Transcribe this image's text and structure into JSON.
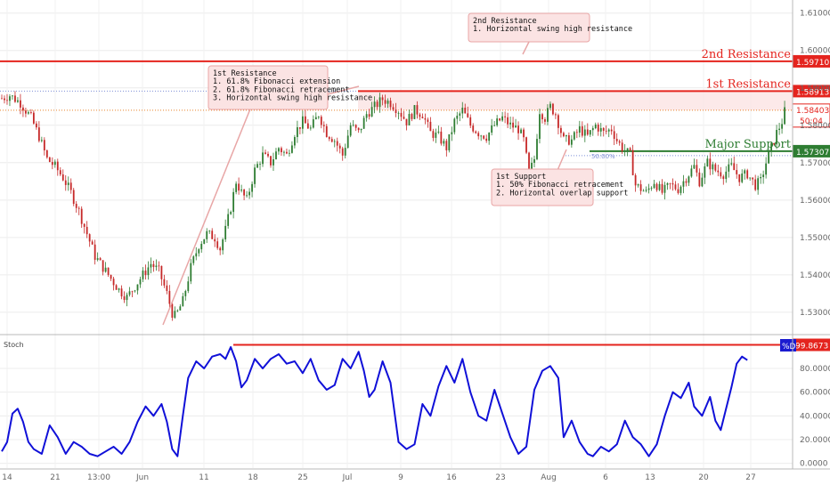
{
  "chart_data": {
    "type": "candlestick",
    "price_axis": {
      "ticks": [
        "1.53000",
        "1.54000",
        "1.55000",
        "1.56000",
        "1.57000",
        "1.58000",
        "1.59000",
        "1.60000",
        "1.61000"
      ],
      "ylim": [
        1.5245,
        1.6135
      ]
    },
    "time_axis": {
      "ticks": [
        "14",
        "21",
        "13:00",
        "Jun",
        "11",
        "18",
        "25",
        "Jul",
        "9",
        "16",
        "23",
        "Aug",
        "6",
        "13",
        "20",
        "27"
      ]
    },
    "price_path": [
      [
        0,
        1.5872
      ],
      [
        3,
        1.588
      ],
      [
        7,
        1.586
      ],
      [
        11,
        1.582
      ],
      [
        14,
        1.577
      ],
      [
        17,
        1.571
      ],
      [
        20,
        1.569
      ],
      [
        23,
        1.566
      ],
      [
        26,
        1.562
      ],
      [
        29,
        1.557
      ],
      [
        32,
        1.551
      ],
      [
        35,
        1.545
      ],
      [
        38,
        1.542
      ],
      [
        41,
        1.539
      ],
      [
        44,
        1.536
      ],
      [
        47,
        1.534
      ],
      [
        50,
        1.537
      ],
      [
        53,
        1.54
      ],
      [
        56,
        1.543
      ],
      [
        59,
        1.541
      ],
      [
        62,
        1.535
      ],
      [
        64.5,
        1.5285
      ],
      [
        66,
        1.53
      ],
      [
        68,
        1.533
      ],
      [
        71,
        1.542
      ],
      [
        74,
        1.548
      ],
      [
        77,
        1.551
      ],
      [
        80,
        1.55
      ],
      [
        82,
        1.547
      ],
      [
        84,
        1.552
      ],
      [
        86,
        1.558
      ],
      [
        88,
        1.565
      ],
      [
        90,
        1.562
      ],
      [
        92,
        1.56
      ],
      [
        95,
        1.568
      ],
      [
        98,
        1.572
      ],
      [
        101,
        1.57
      ],
      [
        104,
        1.574
      ],
      [
        107,
        1.572
      ],
      [
        110,
        1.578
      ],
      [
        113,
        1.581
      ],
      [
        116,
        1.579
      ],
      [
        119,
        1.583
      ],
      [
        122,
        1.578
      ],
      [
        125,
        1.576
      ],
      [
        128,
        1.572
      ],
      [
        131,
        1.58
      ],
      [
        134,
        1.578
      ],
      [
        137,
        1.583
      ],
      [
        140,
        1.585
      ],
      [
        143,
        1.587
      ],
      [
        146,
        1.586
      ],
      [
        149,
        1.584
      ],
      [
        152,
        1.581
      ],
      [
        155,
        1.584
      ],
      [
        158,
        1.583
      ],
      [
        161,
        1.578
      ],
      [
        164,
        1.577
      ],
      [
        167,
        1.574
      ],
      [
        170,
        1.581
      ],
      [
        173,
        1.584
      ],
      [
        176,
        1.58
      ],
      [
        179,
        1.578
      ],
      [
        182,
        1.577
      ],
      [
        185,
        1.58
      ],
      [
        188,
        1.582
      ],
      [
        191,
        1.58
      ],
      [
        194,
        1.579
      ],
      [
        196,
        1.576
      ],
      [
        198,
        1.567
      ],
      [
        200,
        1.571
      ],
      [
        202,
        1.584
      ],
      [
        204,
        1.582
      ],
      [
        206,
        1.585
      ],
      [
        208,
        1.583
      ],
      [
        211,
        1.576
      ],
      [
        214,
        1.576
      ],
      [
        217,
        1.579
      ],
      [
        220,
        1.577
      ],
      [
        223,
        1.58
      ],
      [
        226,
        1.578
      ],
      [
        229,
        1.579
      ],
      [
        231,
        1.576
      ],
      [
        233,
        1.574
      ],
      [
        236,
        1.572
      ],
      [
        238,
        1.564
      ],
      [
        240,
        1.563
      ],
      [
        242,
        1.562
      ],
      [
        245,
        1.565
      ],
      [
        248,
        1.562
      ],
      [
        251,
        1.564
      ],
      [
        254,
        1.563
      ],
      [
        257,
        1.566
      ],
      [
        260,
        1.569
      ],
      [
        262,
        1.565
      ],
      [
        265,
        1.57
      ],
      [
        268,
        1.568
      ],
      [
        271,
        1.567
      ],
      [
        274,
        1.569
      ],
      [
        277,
        1.566
      ],
      [
        280,
        1.567
      ],
      [
        283,
        1.564
      ],
      [
        285,
        1.565
      ],
      [
        287,
        1.57
      ],
      [
        289,
        1.574
      ],
      [
        291,
        1.578
      ],
      [
        293,
        1.581
      ],
      [
        294.7,
        1.5855
      ]
    ],
    "stochastic": {
      "label": "Stoch",
      "ticks": [
        "0.0000",
        "20.0000",
        "40.0000",
        "60.0000",
        "80.0000"
      ],
      "ylim": [
        -4,
        107
      ],
      "series": [
        {
          "name": "%D",
          "values": [
            [
              0,
              10
            ],
            [
              2,
              18
            ],
            [
              4,
              42
            ],
            [
              6,
              46
            ],
            [
              8,
              35
            ],
            [
              10,
              18
            ],
            [
              12,
              12
            ],
            [
              15,
              8
            ],
            [
              18,
              32
            ],
            [
              21,
              22
            ],
            [
              24,
              8
            ],
            [
              27,
              18
            ],
            [
              30,
              14
            ],
            [
              33,
              8
            ],
            [
              36,
              6
            ],
            [
              39,
              10
            ],
            [
              42,
              14
            ],
            [
              45,
              8
            ],
            [
              48,
              18
            ],
            [
              51,
              35
            ],
            [
              54,
              48
            ],
            [
              57,
              40
            ],
            [
              60,
              50
            ],
            [
              62,
              35
            ],
            [
              64,
              12
            ],
            [
              66,
              6
            ],
            [
              68,
              40
            ],
            [
              70,
              72
            ],
            [
              73,
              86
            ],
            [
              76,
              80
            ],
            [
              79,
              90
            ],
            [
              82,
              92
            ],
            [
              84,
              88
            ],
            [
              86,
              98
            ],
            [
              88,
              86
            ],
            [
              90,
              64
            ],
            [
              92,
              70
            ],
            [
              95,
              88
            ],
            [
              98,
              80
            ],
            [
              101,
              88
            ],
            [
              104,
              92
            ],
            [
              107,
              84
            ],
            [
              110,
              86
            ],
            [
              113,
              76
            ],
            [
              116,
              88
            ],
            [
              119,
              70
            ],
            [
              122,
              62
            ],
            [
              125,
              66
            ],
            [
              128,
              88
            ],
            [
              131,
              80
            ],
            [
              134,
              94
            ],
            [
              136,
              78
            ],
            [
              138,
              56
            ],
            [
              140,
              62
            ],
            [
              143,
              86
            ],
            [
              146,
              68
            ],
            [
              149,
              18
            ],
            [
              152,
              12
            ],
            [
              155,
              16
            ],
            [
              158,
              50
            ],
            [
              161,
              40
            ],
            [
              164,
              65
            ],
            [
              167,
              82
            ],
            [
              170,
              68
            ],
            [
              173,
              88
            ],
            [
              176,
              60
            ],
            [
              179,
              40
            ],
            [
              182,
              36
            ],
            [
              185,
              62
            ],
            [
              188,
              42
            ],
            [
              191,
              22
            ],
            [
              194,
              8
            ],
            [
              197,
              14
            ],
            [
              200,
              62
            ],
            [
              203,
              78
            ],
            [
              206,
              82
            ],
            [
              209,
              72
            ],
            [
              211,
              22
            ],
            [
              214,
              36
            ],
            [
              217,
              18
            ],
            [
              220,
              8
            ],
            [
              222,
              6
            ],
            [
              225,
              14
            ],
            [
              228,
              10
            ],
            [
              231,
              16
            ],
            [
              234,
              36
            ],
            [
              237,
              22
            ],
            [
              240,
              16
            ],
            [
              243,
              6
            ],
            [
              246,
              16
            ],
            [
              249,
              40
            ],
            [
              252,
              60
            ],
            [
              255,
              55
            ],
            [
              258,
              68
            ],
            [
              260,
              48
            ],
            [
              263,
              40
            ],
            [
              266,
              56
            ],
            [
              268,
              36
            ],
            [
              270,
              28
            ],
            [
              272,
              46
            ],
            [
              274,
              64
            ],
            [
              276,
              84
            ],
            [
              278,
              90
            ],
            [
              280,
              87
            ]
          ]
        }
      ],
      "level": "99.8673"
    },
    "levels": [
      {
        "id": "second_resistance",
        "label": "2nd Resistance",
        "value": "1.59710",
        "price": 1.5971,
        "color": "#e4241e"
      },
      {
        "id": "first_resistance",
        "label": "1st Resistance",
        "value": "1.58913",
        "price": 1.58913,
        "color": "#e4241e"
      },
      {
        "id": "current_price",
        "value": "1.58403",
        "price": 1.58403,
        "color": "#e4241e",
        "timer": "50:04"
      },
      {
        "id": "major_support",
        "label": "Major Support",
        "value": "1.57307",
        "price": 1.57307,
        "color": "#2e7d32"
      }
    ],
    "annotations": [
      {
        "id": "callout_first_resistance",
        "lines": [
          "1st Resistance",
          "1. 61.8% Fibonacci extension",
          "2. 61.8% Fibonacci retracement",
          "3. Horizontal swing high resistance"
        ]
      },
      {
        "id": "callout_second_resistance",
        "lines": [
          "2nd Resistance",
          "1. Horizontal swing high resistance"
        ]
      },
      {
        "id": "callout_first_support",
        "lines": [
          "1st Support",
          "1. 50% Fibonacci retracement",
          "2. Horizontal overlap support"
        ]
      },
      {
        "id": "fib_label",
        "text": "50.00%"
      }
    ],
    "colors": {
      "bull": "#2e7d32",
      "bear": "#c62828",
      "stoch": "#1010d8",
      "grid": "#e6e6e6"
    }
  }
}
